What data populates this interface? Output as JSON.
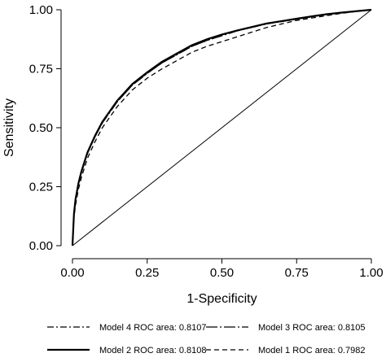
{
  "chart_data": {
    "type": "line",
    "title": "",
    "xlabel": "1-Specificity",
    "ylabel": "Sensitivity",
    "xlim": [
      0,
      1
    ],
    "ylim": [
      0,
      1
    ],
    "x_ticks": [
      "0.00",
      "0.25",
      "0.50",
      "0.75",
      "1.00"
    ],
    "y_ticks": [
      "0.00",
      "0.25",
      "0.50",
      "0.75",
      "1.00"
    ],
    "grid": false,
    "legend_position": "bottom",
    "reference_line": {
      "x": [
        0,
        1
      ],
      "y": [
        0,
        1
      ]
    },
    "series": [
      {
        "name": "Model 4 ROC area: 0.8107",
        "line_style": "dash-dot",
        "x": [
          0,
          0.005,
          0.01,
          0.02,
          0.03,
          0.05,
          0.075,
          0.1,
          0.15,
          0.2,
          0.25,
          0.3,
          0.35,
          0.4,
          0.45,
          0.5,
          0.55,
          0.6,
          0.65,
          0.7,
          0.75,
          0.8,
          0.85,
          0.9,
          0.95,
          1
        ],
        "y": [
          0,
          0.13,
          0.19,
          0.26,
          0.31,
          0.39,
          0.46,
          0.52,
          0.61,
          0.68,
          0.73,
          0.775,
          0.81,
          0.845,
          0.87,
          0.89,
          0.91,
          0.925,
          0.94,
          0.95,
          0.96,
          0.97,
          0.98,
          0.987,
          0.993,
          1
        ]
      },
      {
        "name": "Model 3 ROC area: 0.8105",
        "line_style": "long-dash-dot",
        "x": [
          0,
          0.005,
          0.01,
          0.02,
          0.03,
          0.05,
          0.075,
          0.1,
          0.15,
          0.2,
          0.25,
          0.3,
          0.35,
          0.4,
          0.45,
          0.5,
          0.55,
          0.6,
          0.65,
          0.7,
          0.75,
          0.8,
          0.85,
          0.9,
          0.95,
          1
        ],
        "y": [
          0,
          0.13,
          0.19,
          0.26,
          0.31,
          0.39,
          0.46,
          0.52,
          0.61,
          0.68,
          0.73,
          0.775,
          0.81,
          0.845,
          0.87,
          0.89,
          0.91,
          0.925,
          0.94,
          0.95,
          0.96,
          0.97,
          0.98,
          0.987,
          0.993,
          1
        ]
      },
      {
        "name": "Model 2 ROC area: 0.8108",
        "line_style": "solid",
        "x": [
          0,
          0.005,
          0.01,
          0.02,
          0.03,
          0.05,
          0.075,
          0.1,
          0.15,
          0.2,
          0.25,
          0.3,
          0.35,
          0.4,
          0.45,
          0.5,
          0.55,
          0.6,
          0.65,
          0.7,
          0.75,
          0.8,
          0.85,
          0.9,
          0.95,
          1
        ],
        "y": [
          0,
          0.135,
          0.195,
          0.265,
          0.315,
          0.395,
          0.465,
          0.525,
          0.615,
          0.685,
          0.735,
          0.78,
          0.815,
          0.85,
          0.875,
          0.895,
          0.912,
          0.927,
          0.942,
          0.952,
          0.962,
          0.972,
          0.981,
          0.988,
          0.994,
          1
        ]
      },
      {
        "name": "Model 1 ROC area: 0.7982",
        "line_style": "dashed",
        "x": [
          0,
          0.005,
          0.01,
          0.02,
          0.03,
          0.05,
          0.075,
          0.1,
          0.15,
          0.2,
          0.25,
          0.3,
          0.35,
          0.4,
          0.45,
          0.5,
          0.55,
          0.6,
          0.65,
          0.7,
          0.75,
          0.8,
          0.85,
          0.9,
          0.95,
          1
        ],
        "y": [
          0,
          0.12,
          0.17,
          0.24,
          0.29,
          0.37,
          0.44,
          0.5,
          0.59,
          0.66,
          0.71,
          0.75,
          0.785,
          0.82,
          0.845,
          0.865,
          0.885,
          0.905,
          0.925,
          0.94,
          0.955,
          0.965,
          0.975,
          0.985,
          0.993,
          1
        ]
      }
    ]
  }
}
